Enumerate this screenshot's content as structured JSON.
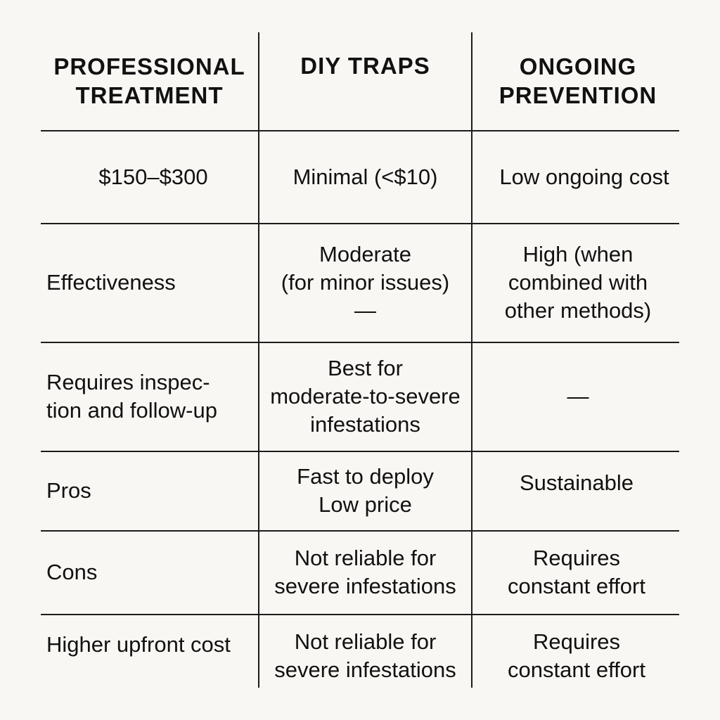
{
  "headers": [
    [
      "PROFESSIONAL",
      "TREATMENT"
    ],
    [
      "DIY TRAPS"
    ],
    [
      "ONGOING",
      "PREVENTION"
    ]
  ],
  "rows": [
    {
      "col1": [
        "$150–$300"
      ],
      "col2": [
        "Minimal (<$10)"
      ],
      "col3": [
        "Low ongoing cost"
      ]
    },
    {
      "col1": [
        "Effectiveness"
      ],
      "col2": [
        "Moderate",
        "(for minor issues)",
        "—"
      ],
      "col3": [
        "High (when",
        "combined with",
        "other methods)"
      ]
    },
    {
      "col1": [
        "Requires inspec-",
        "tion and follow-up"
      ],
      "col2": [
        "Best for",
        "moderate-to-severe",
        "infestations"
      ],
      "col3": [
        "—"
      ]
    },
    {
      "col1": [
        "Pros"
      ],
      "col2": [
        "Fast to deploy",
        "Low price"
      ],
      "col3": [
        "Sustainable"
      ]
    },
    {
      "col1": [
        "Cons"
      ],
      "col2": [
        "Not reliable for",
        "severe infestations"
      ],
      "col3": [
        "Requires",
        "constant effort"
      ]
    },
    {
      "col1": [
        "Higher upfront cost"
      ],
      "col2": [
        "Not reliable for",
        "severe infestations"
      ],
      "col3": [
        "Requires",
        "constant effort"
      ]
    }
  ]
}
